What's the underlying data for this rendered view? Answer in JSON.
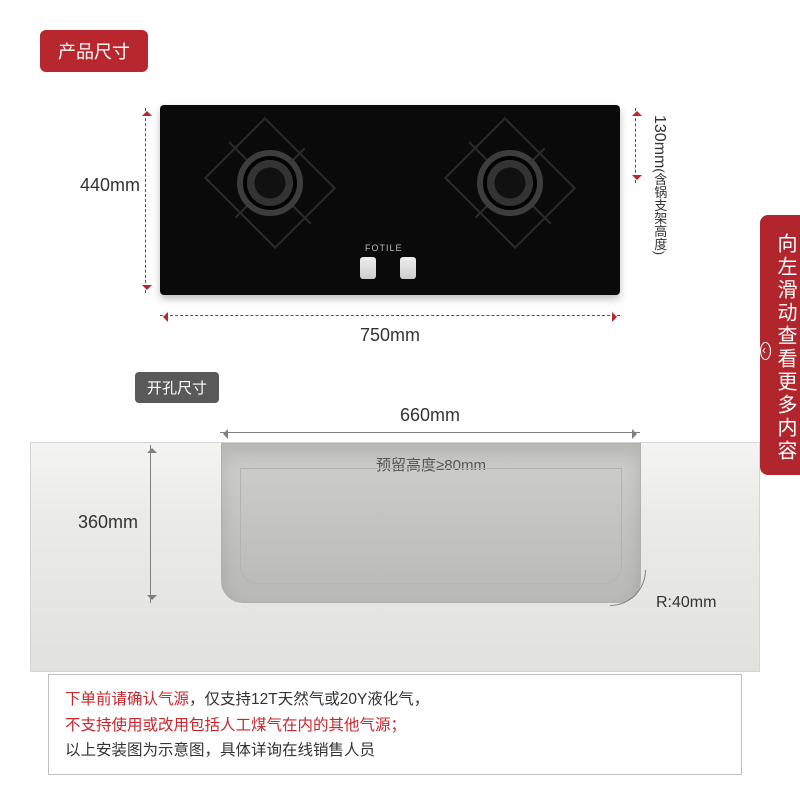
{
  "badge": "产品尺寸",
  "brand_text": "FOTILE",
  "dims": {
    "height_left": "440mm",
    "width_bottom": "750mm",
    "height_right": "130mm",
    "height_right_sub": "(含锅支架高度)",
    "cutout_label": "开孔尺寸",
    "cut_width": "660mm",
    "cut_height": "360mm",
    "reserve": "预留高度≥80mm",
    "radius": "R:40mm"
  },
  "colors": {
    "accent": "#b8272e",
    "gray_line": "#808080",
    "cooktop": "#0a0a0a"
  },
  "note": {
    "l1a": "下单前请确认气源",
    "l1b": "，仅支持12T天然气或20Y液化气，",
    "l2": "不支持使用或改用包括人工煤气在内的其他气源；",
    "l3": "以上安装图为示意图，具体详询在线销售人员"
  },
  "ribbon": {
    "text": "向左滑动查看更多内容",
    "arrow": "‹"
  }
}
